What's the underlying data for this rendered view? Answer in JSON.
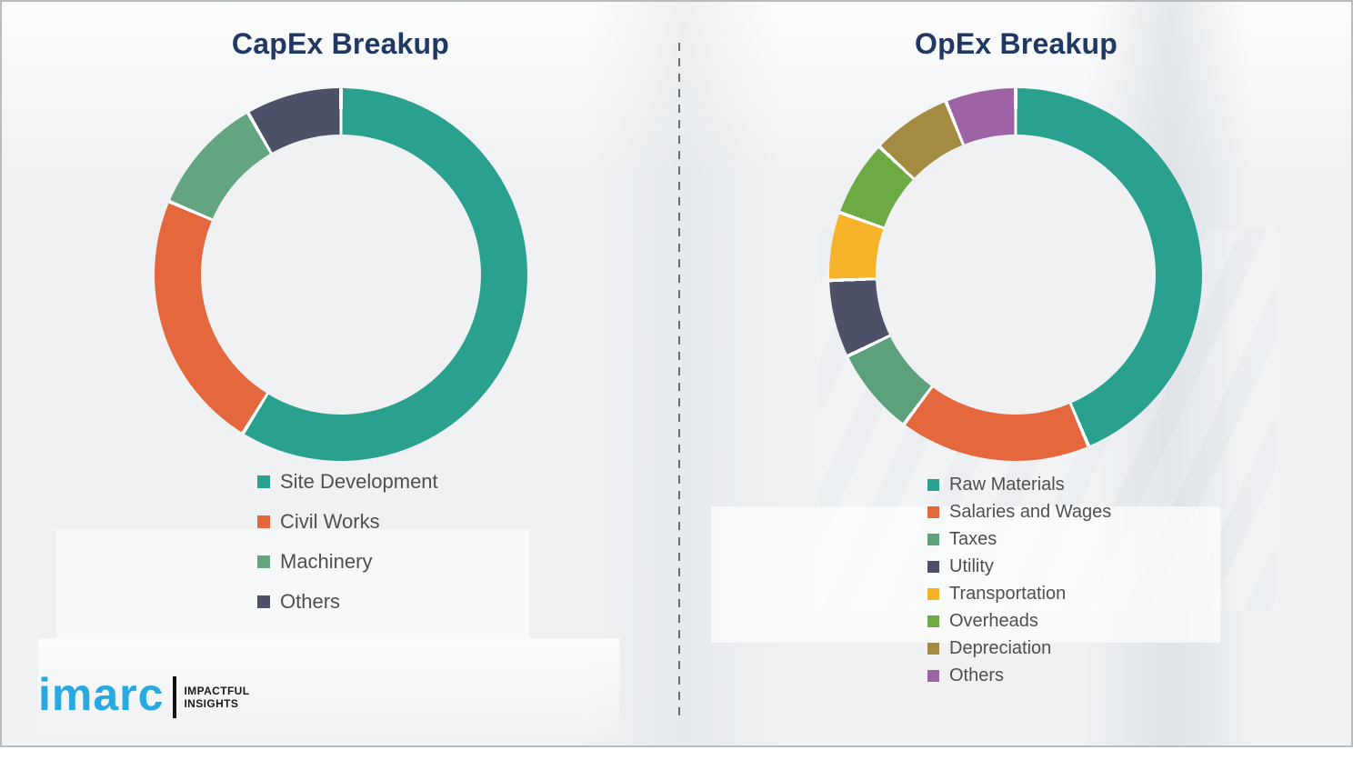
{
  "page": {
    "background_color": "#eff1f3",
    "frame_border_color": "#b9bcbe",
    "divider_style": "vertical dashed line between panels",
    "title_color": "#1f3864",
    "legend_text_color": "#4f4f4f"
  },
  "chart_data": [
    {
      "type": "pie",
      "subtype": "donut",
      "title": "CapEx Breakup",
      "labels": [
        "Site Development",
        "Civil Works",
        "Machinery",
        "Others"
      ],
      "values": [
        58.8,
        22.6,
        10.3,
        8.3
      ],
      "colors": [
        "#2aa08f",
        "#e4673e",
        "#63a581",
        "#4c5168"
      ],
      "start_angle_deg": 0,
      "direction": "clockwise",
      "donut_hole_ratio": 0.75,
      "segment_gap_color": "#ffffff",
      "legend_position": "below-left"
    },
    {
      "type": "pie",
      "subtype": "donut",
      "title": "OpEx Breakup",
      "labels": [
        "Raw Materials",
        "Salaries and Wages",
        "Taxes",
        "Utility",
        "Transportation",
        "Overheads",
        "Depreciation",
        "Others"
      ],
      "values": [
        43.6,
        16.6,
        7.6,
        6.7,
        5.9,
        6.6,
        6.9,
        6.1
      ],
      "colors": [
        "#2aa08f",
        "#e4673e",
        "#5ca07c",
        "#4c5168",
        "#f5b32a",
        "#6cab44",
        "#a38c42",
        "#9e63a5"
      ],
      "start_angle_deg": 0,
      "direction": "clockwise",
      "donut_hole_ratio": 0.75,
      "segment_gap_color": "#ffffff",
      "legend_position": "below-left"
    }
  ],
  "logo": {
    "brand": "imarc",
    "brand_color": "#29a9e0",
    "tagline_line1": "IMPACTFUL",
    "tagline_line2": "INSIGHTS"
  }
}
